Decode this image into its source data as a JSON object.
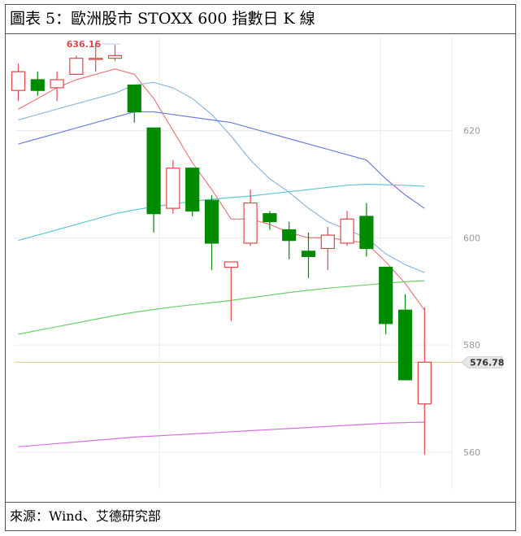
{
  "header": {
    "title": "圖表 5：歐洲股市 STOXX 600 指數日 K 線"
  },
  "footer": {
    "source": "來源：Wind、艾德研究部"
  },
  "chart_data": {
    "type": "candlestick",
    "title": "圖表 5：歐洲股市 STOXX 600 指數日 K 線",
    "y_ticks": [
      560,
      580,
      600,
      620
    ],
    "ylim": [
      553,
      638
    ],
    "grid": true,
    "annotations": {
      "max_label": "636.16",
      "max_value": 636.16,
      "last_price_label": "576.78",
      "last_price_value": 576.78
    },
    "colors": {
      "up": "#e0474c",
      "down": "#008a00",
      "ma5": "#e87b7b",
      "ma10": "#8fb8e0",
      "ma20": "#6b7fdd",
      "ma60": "#5cc9d8",
      "ma120": "#6ccf6c",
      "ma250": "#d96ee0",
      "last_price_line": "#f5c98a",
      "last_price_box": "#e6e6e6"
    },
    "candles": [
      {
        "open": 627.5,
        "close": 631.0,
        "high": 632.5,
        "low": 625.5
      },
      {
        "open": 629.5,
        "close": 627.5,
        "high": 631.0,
        "low": 626.5
      },
      {
        "open": 628.0,
        "close": 629.5,
        "high": 631.0,
        "low": 625.5
      },
      {
        "open": 630.5,
        "close": 633.5,
        "high": 634.0,
        "low": 630.5
      },
      {
        "open": 633.5,
        "close": 633.5,
        "high": 636.16,
        "low": 631.0
      },
      {
        "open": 633.5,
        "close": 634.0,
        "high": 636.0,
        "low": 633.0
      },
      {
        "open": 628.5,
        "close": 623.5,
        "high": 628.5,
        "low": 621.5
      },
      {
        "open": 620.5,
        "close": 604.5,
        "high": 620.5,
        "low": 601.0
      },
      {
        "open": 605.5,
        "close": 613.0,
        "high": 614.5,
        "low": 604.5
      },
      {
        "open": 613.0,
        "close": 605.0,
        "high": 613.0,
        "low": 604.0
      },
      {
        "open": 607.0,
        "close": 599.0,
        "high": 608.0,
        "low": 594.0
      },
      {
        "open": 594.5,
        "close": 595.5,
        "high": 595.5,
        "low": 584.5
      },
      {
        "open": 599.0,
        "close": 606.5,
        "high": 609.0,
        "low": 598.5
      },
      {
        "open": 604.5,
        "close": 603.0,
        "high": 605.0,
        "low": 601.5
      },
      {
        "open": 601.5,
        "close": 599.5,
        "high": 603.0,
        "low": 596.0
      },
      {
        "open": 597.5,
        "close": 596.5,
        "high": 601.0,
        "low": 592.5
      },
      {
        "open": 598.0,
        "close": 600.5,
        "high": 602.0,
        "low": 594.0
      },
      {
        "open": 599.0,
        "close": 603.5,
        "high": 605.0,
        "low": 598.5
      },
      {
        "open": 604.0,
        "close": 598.0,
        "high": 606.5,
        "low": 596.5
      },
      {
        "open": 594.5,
        "close": 584.0,
        "high": 594.5,
        "low": 582.0
      },
      {
        "open": 586.5,
        "close": 573.5,
        "high": 589.5,
        "low": 573.5
      },
      {
        "open": 569.0,
        "close": 576.78,
        "high": 587.0,
        "low": 559.5
      }
    ],
    "series": [
      {
        "key": "ma5",
        "values": [
          624,
          626,
          628,
          629.5,
          630.5,
          631.5,
          630.5,
          626,
          620,
          614,
          609,
          603.5,
          603.5,
          602.5,
          601,
          600,
          600,
          599.5,
          599,
          595.5,
          591.5,
          586.5
        ]
      },
      {
        "key": "ma10",
        "values": [
          622,
          623,
          624,
          625,
          626,
          627,
          628.5,
          629,
          628,
          626,
          623,
          619,
          614.5,
          611,
          608.5,
          605.5,
          603,
          601.5,
          600,
          597,
          595,
          593.5
        ]
      },
      {
        "key": "ma20",
        "values": [
          617.5,
          618.5,
          619.5,
          620.5,
          621.5,
          622.5,
          623.5,
          623.5,
          623,
          622.5,
          622,
          621.5,
          620.5,
          619.5,
          618.5,
          617.5,
          616.5,
          615.5,
          614.5,
          611,
          608,
          605.5
        ]
      },
      {
        "key": "ma60",
        "values": [
          599.5,
          600.5,
          601.5,
          602.5,
          603.5,
          604.5,
          605.2,
          605.8,
          606.3,
          606.8,
          607.2,
          607.5,
          607.8,
          608.2,
          608.6,
          609,
          609.4,
          609.8,
          610,
          609.9,
          609.8,
          609.6
        ]
      },
      {
        "key": "ma120",
        "values": [
          582,
          582.7,
          583.4,
          584.1,
          584.8,
          585.5,
          586.1,
          586.6,
          587.1,
          587.5,
          587.9,
          588.3,
          588.8,
          589.3,
          589.8,
          590.2,
          590.6,
          590.9,
          591.2,
          591.5,
          591.8,
          592
        ]
      },
      {
        "key": "ma250",
        "values": [
          561,
          561.3,
          561.6,
          561.9,
          562.2,
          562.5,
          562.8,
          563.0,
          563.2,
          563.4,
          563.6,
          563.8,
          564.0,
          564.2,
          564.4,
          564.6,
          564.8,
          565.0,
          565.2,
          565.4,
          565.5,
          565.6
        ]
      }
    ]
  }
}
